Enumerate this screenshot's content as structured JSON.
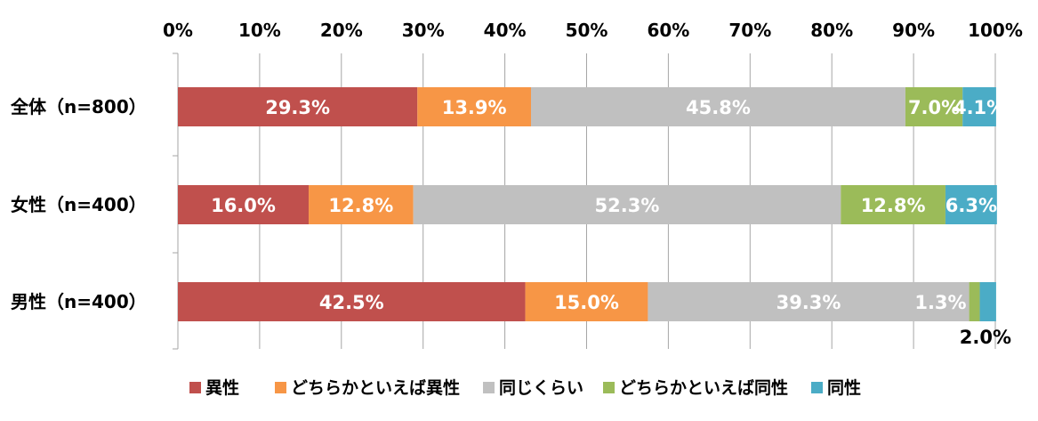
{
  "chart_data": {
    "type": "bar",
    "orientation": "horizontal",
    "stacked": true,
    "title": "",
    "xlabel": "",
    "ylabel": "",
    "xlim": [
      0,
      100
    ],
    "x_ticks": [
      "0%",
      "10%",
      "20%",
      "30%",
      "40%",
      "50%",
      "60%",
      "70%",
      "80%",
      "90%",
      "100%"
    ],
    "grid": "vertical",
    "legend_position": "bottom",
    "categories": [
      "全体（n=800）",
      "女性（n=400）",
      "男性（n=400）"
    ],
    "series": [
      {
        "name": "異性",
        "color": "#c0504d",
        "values": [
          29.3,
          16.0,
          42.5
        ],
        "labels": [
          "29.3%",
          "16.0%",
          "42.5%"
        ]
      },
      {
        "name": "どちらかといえば異性",
        "color": "#f79646",
        "values": [
          13.9,
          12.8,
          15.0
        ],
        "labels": [
          "13.9%",
          "12.8%",
          "15.0%"
        ]
      },
      {
        "name": "同じくらい",
        "color": "#c0c0c0",
        "values": [
          45.8,
          52.3,
          39.3
        ],
        "labels": [
          "45.8%",
          "52.3%",
          "39.3%"
        ]
      },
      {
        "name": "どちらかといえば同性",
        "color": "#9bbb59",
        "values": [
          7.0,
          12.8,
          1.3
        ],
        "labels": [
          "7.0%",
          "12.8%",
          "1.3%"
        ]
      },
      {
        "name": "同性",
        "color": "#4bacc6",
        "values": [
          4.1,
          6.3,
          2.0
        ],
        "labels": [
          "4.1%",
          "6.3%",
          "2.0%"
        ]
      }
    ]
  }
}
